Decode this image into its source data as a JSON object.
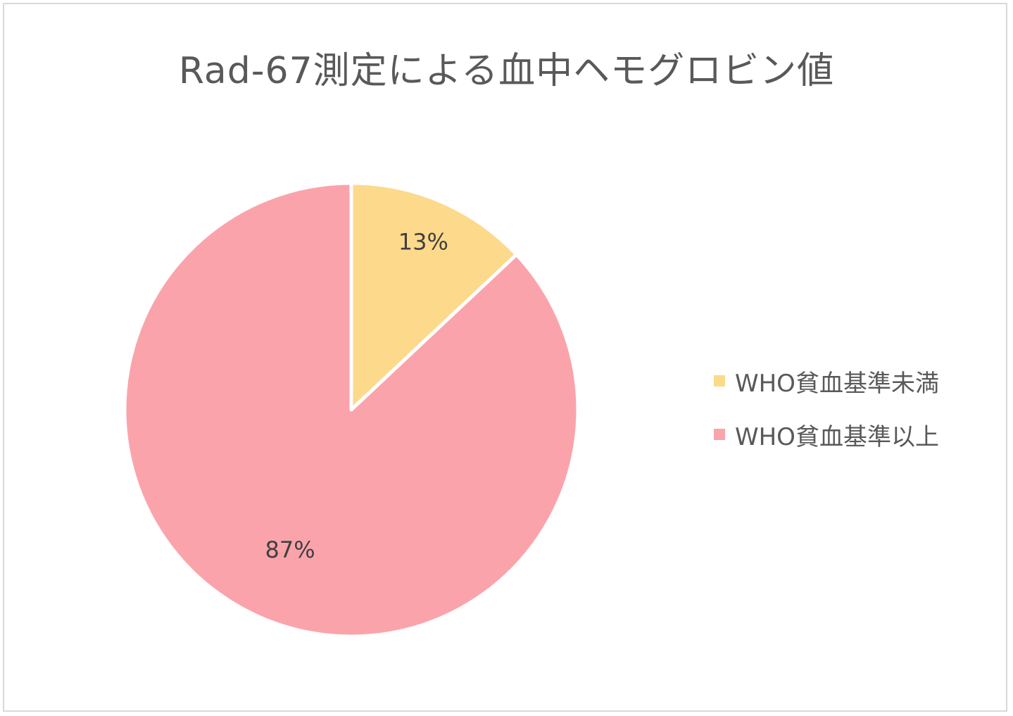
{
  "chart_data": {
    "type": "pie",
    "title": "Rad-67測定による血中ヘモグロビン値",
    "categories": [
      "WHO貧血基準未満",
      "WHO貧血基準以上"
    ],
    "values": [
      13,
      87
    ],
    "data_labels": [
      "13%",
      "87%"
    ],
    "colors": [
      "#fdd98b",
      "#fba3ab"
    ],
    "start_angle_deg": 0,
    "direction": "clockwise",
    "legend_position": "right"
  }
}
